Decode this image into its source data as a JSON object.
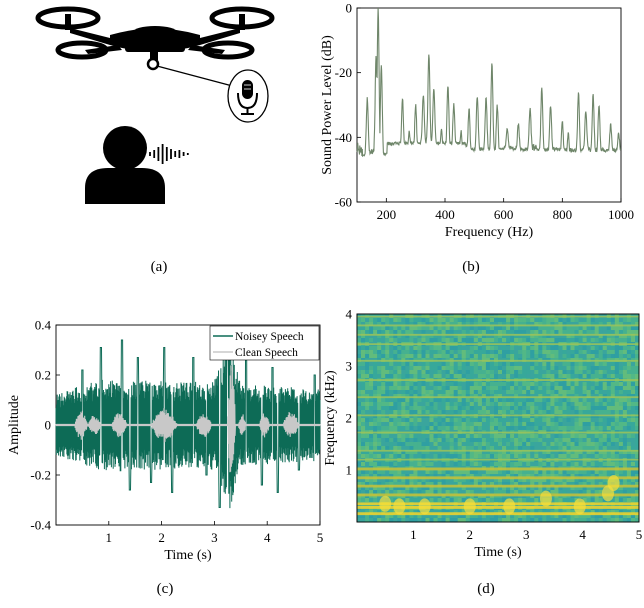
{
  "panels": {
    "a": {
      "caption": "(a)"
    },
    "b": {
      "caption": "(b)"
    },
    "c": {
      "caption": "(c)"
    },
    "d": {
      "caption": "(d)"
    }
  },
  "colors": {
    "spectrum_line": "#6f866a",
    "noisy_speech": "#0d6b56",
    "clean_speech": "#c8c8c8",
    "icons": "#000000"
  },
  "icons": [
    "drone-icon",
    "microphone-icon",
    "person-icon",
    "sound-wave-icon"
  ],
  "chart_data": [
    {
      "id": "b",
      "type": "line",
      "xlabel": "Frequency (Hz)",
      "ylabel": "Sound Power Level (dB)",
      "xlim": [
        100,
        1000
      ],
      "ylim": [
        -60,
        0
      ],
      "xticks": [
        200,
        400,
        600,
        800,
        1000
      ],
      "yticks": [
        0,
        -20,
        -40,
        -60
      ],
      "grid": false,
      "baseline_points": [
        [
          100,
          -43
        ],
        [
          130,
          -46
        ],
        [
          150,
          -45
        ],
        [
          200,
          -48
        ],
        [
          230,
          -49
        ],
        [
          260,
          -44
        ],
        [
          290,
          -47
        ],
        [
          320,
          -42
        ],
        [
          360,
          -42
        ],
        [
          390,
          -47
        ],
        [
          420,
          -43
        ],
        [
          450,
          -47
        ],
        [
          480,
          -46
        ],
        [
          500,
          -45
        ],
        [
          540,
          -44
        ],
        [
          580,
          -46
        ],
        [
          600,
          -44
        ],
        [
          640,
          -44
        ],
        [
          680,
          -45
        ],
        [
          700,
          -43
        ],
        [
          740,
          -46
        ],
        [
          780,
          -44
        ],
        [
          800,
          -46
        ],
        [
          840,
          -47
        ],
        [
          880,
          -44
        ],
        [
          920,
          -46
        ],
        [
          960,
          -45
        ],
        [
          1000,
          -45
        ]
      ],
      "peaks": [
        {
          "x": 135,
          "y": -28
        },
        {
          "x": 165,
          "y": -15
        },
        {
          "x": 172,
          "y": 0
        },
        {
          "x": 183,
          "y": -18
        },
        {
          "x": 255,
          "y": -28
        },
        {
          "x": 278,
          "y": -38
        },
        {
          "x": 300,
          "y": -30
        },
        {
          "x": 326,
          "y": -27
        },
        {
          "x": 345,
          "y": -14
        },
        {
          "x": 362,
          "y": -25
        },
        {
          "x": 388,
          "y": -37
        },
        {
          "x": 410,
          "y": -24
        },
        {
          "x": 430,
          "y": -30
        },
        {
          "x": 455,
          "y": -38
        },
        {
          "x": 482,
          "y": -31
        },
        {
          "x": 510,
          "y": -27
        },
        {
          "x": 540,
          "y": -28
        },
        {
          "x": 560,
          "y": -17
        },
        {
          "x": 578,
          "y": -30
        },
        {
          "x": 612,
          "y": -37
        },
        {
          "x": 650,
          "y": -36
        },
        {
          "x": 690,
          "y": -31
        },
        {
          "x": 730,
          "y": -25
        },
        {
          "x": 760,
          "y": -30
        },
        {
          "x": 800,
          "y": -35
        },
        {
          "x": 820,
          "y": -39
        },
        {
          "x": 855,
          "y": -26
        },
        {
          "x": 880,
          "y": -32
        },
        {
          "x": 905,
          "y": -27
        },
        {
          "x": 925,
          "y": -30
        },
        {
          "x": 965,
          "y": -36
        },
        {
          "x": 992,
          "y": -39
        }
      ]
    },
    {
      "id": "c",
      "type": "line",
      "xlabel": "Time (s)",
      "ylabel": "Amplitude",
      "xlim": [
        0,
        5
      ],
      "ylim": [
        -0.4,
        0.4
      ],
      "xticks": [
        1,
        2,
        3,
        4,
        5
      ],
      "yticks": [
        0.4,
        0.2,
        0,
        -0.2,
        -0.4
      ],
      "legend_position": "top-right",
      "series": [
        {
          "name": "Noisey Speech",
          "color": "#0d6b56",
          "envelope": [
            [
              0,
              0.12
            ],
            [
              0.5,
              0.16
            ],
            [
              1,
              0.19
            ],
            [
              1.5,
              0.18
            ],
            [
              2,
              0.18
            ],
            [
              2.5,
              0.17
            ],
            [
              3,
              0.18
            ],
            [
              3.3,
              0.34
            ],
            [
              3.5,
              0.16
            ],
            [
              4,
              0.16
            ],
            [
              4.5,
              0.15
            ],
            [
              5,
              0.15
            ]
          ],
          "spikes": [
            [
              0.5,
              0.22
            ],
            [
              0.85,
              0.31
            ],
            [
              1.25,
              0.34
            ],
            [
              1.4,
              -0.26
            ],
            [
              1.55,
              0.27
            ],
            [
              1.8,
              -0.23
            ],
            [
              2.05,
              0.31
            ],
            [
              2.2,
              -0.27
            ],
            [
              2.6,
              0.27
            ],
            [
              2.85,
              -0.2
            ],
            [
              3.1,
              -0.33
            ],
            [
              3.25,
              0.3
            ],
            [
              3.6,
              0.26
            ],
            [
              3.9,
              -0.24
            ],
            [
              4.1,
              0.23
            ],
            [
              4.2,
              -0.27
            ],
            [
              4.6,
              -0.18
            ],
            [
              4.9,
              0.2
            ]
          ]
        },
        {
          "name": "Clean Speech",
          "color": "#c8c8c8",
          "bursts": [
            [
              0.35,
              0.6,
              0.06
            ],
            [
              0.6,
              0.85,
              0.04
            ],
            [
              1.05,
              1.35,
              0.05
            ],
            [
              1.8,
              2.3,
              0.07
            ],
            [
              2.65,
              2.95,
              0.05
            ],
            [
              3.25,
              3.4,
              0.25
            ],
            [
              3.45,
              3.6,
              0.05
            ],
            [
              3.85,
              4.05,
              0.05
            ],
            [
              4.3,
              4.6,
              0.06
            ]
          ]
        }
      ]
    },
    {
      "id": "d",
      "type": "heatmap",
      "xlabel": "Time (s)",
      "ylabel": "Frequency (kHz)",
      "xlim": [
        0,
        5
      ],
      "ylim": [
        0,
        4
      ],
      "xticks": [
        1,
        2,
        3,
        4,
        5
      ],
      "yticks": [
        1,
        2,
        3,
        4
      ],
      "colormap": "parula",
      "harmonic_bands_khz": [
        0.16,
        0.28,
        0.35,
        0.52,
        0.69,
        0.85,
        1.02,
        1.2,
        1.37,
        1.72,
        2.05,
        2.4,
        2.73,
        3.1,
        3.42,
        3.6,
        3.78,
        3.95
      ]
    }
  ]
}
